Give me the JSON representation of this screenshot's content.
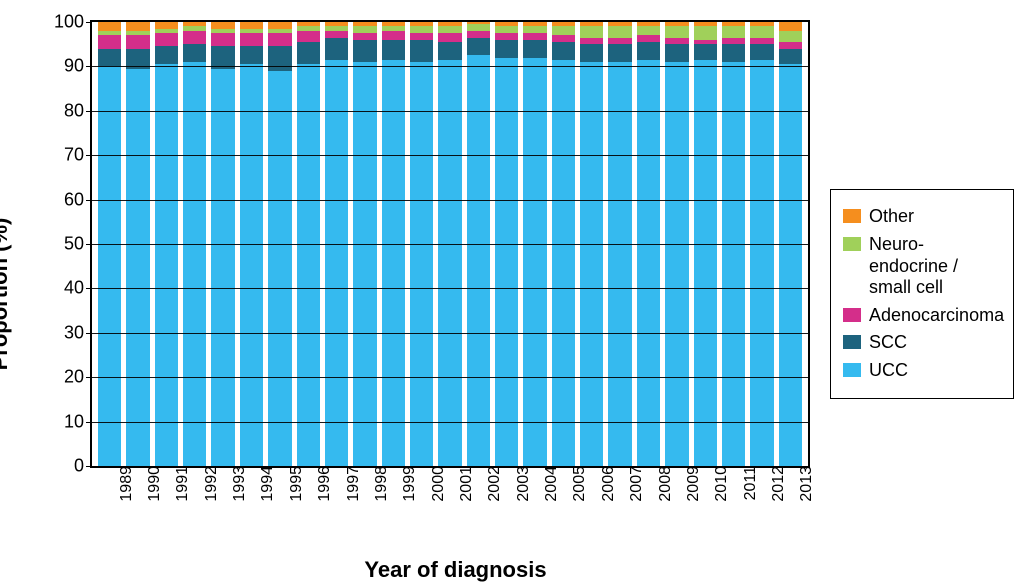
{
  "chart": {
    "type": "stacked-bar",
    "ylabel": "Proportion  (%)",
    "xlabel": "Year of diagnosis",
    "ylim": [
      0,
      100
    ],
    "ytick_step": 10,
    "label_fontsize": 22,
    "tick_fontsize": 18,
    "background_color": "#ffffff",
    "grid_color": "#000000",
    "categories": [
      "1989",
      "1990",
      "1991",
      "1992",
      "1993",
      "1994",
      "1995",
      "1996",
      "1997",
      "1998",
      "1999",
      "2000",
      "2001",
      "2002",
      "2003",
      "2004",
      "2005",
      "2006",
      "2007",
      "2008",
      "2009",
      "2010",
      "2011",
      "2012",
      "2013"
    ],
    "series_order": [
      "UCC",
      "SCC",
      "Adenocarcinoma",
      "Neuro",
      "Other"
    ],
    "series": {
      "UCC": {
        "label": "UCC",
        "color": "#35baef",
        "values": [
          90.0,
          89.5,
          90.5,
          91.0,
          89.5,
          90.5,
          89.0,
          90.5,
          91.5,
          91.0,
          91.5,
          91.0,
          91.5,
          92.5,
          92.0,
          92.0,
          91.5,
          91.0,
          91.0,
          91.5,
          91.0,
          91.5,
          91.0,
          91.5,
          90.5
        ]
      },
      "SCC": {
        "label": "SCC",
        "color": "#1d637e",
        "values": [
          4.0,
          4.5,
          4.0,
          4.0,
          5.0,
          4.0,
          5.5,
          5.0,
          5.0,
          5.0,
          4.5,
          5.0,
          4.0,
          4.0,
          4.0,
          4.0,
          4.0,
          4.0,
          4.0,
          4.0,
          4.0,
          3.5,
          4.0,
          3.5,
          3.5
        ]
      },
      "Adenocarcinoma": {
        "label": "Adenocarcinoma",
        "color": "#d42e8a",
        "values": [
          3.0,
          3.0,
          3.0,
          3.0,
          3.0,
          3.0,
          3.0,
          2.5,
          1.5,
          1.5,
          2.0,
          1.5,
          2.0,
          1.5,
          1.5,
          1.5,
          1.5,
          1.5,
          1.5,
          1.5,
          1.5,
          1.0,
          1.5,
          1.5,
          1.5
        ]
      },
      "Neuro": {
        "label": "Neuro-endocrine / small cell",
        "color": "#a0d05a",
        "values": [
          1.0,
          1.0,
          1.0,
          1.0,
          1.0,
          1.0,
          1.0,
          1.0,
          1.0,
          1.5,
          1.0,
          1.5,
          1.5,
          1.5,
          1.5,
          1.5,
          2.0,
          2.5,
          2.5,
          2.0,
          2.5,
          3.0,
          2.5,
          2.5,
          2.5
        ]
      },
      "Other": {
        "label": "Other",
        "color": "#f58e1e",
        "values": [
          2.0,
          2.0,
          1.5,
          1.0,
          1.5,
          1.5,
          1.5,
          1.0,
          1.0,
          1.0,
          1.0,
          1.0,
          1.0,
          0.5,
          1.0,
          1.0,
          1.0,
          1.0,
          1.0,
          1.0,
          1.0,
          1.0,
          1.0,
          1.0,
          2.0
        ]
      }
    },
    "legend_order": [
      "Other",
      "Neuro",
      "Adenocarcinoma",
      "SCC",
      "UCC"
    ]
  }
}
